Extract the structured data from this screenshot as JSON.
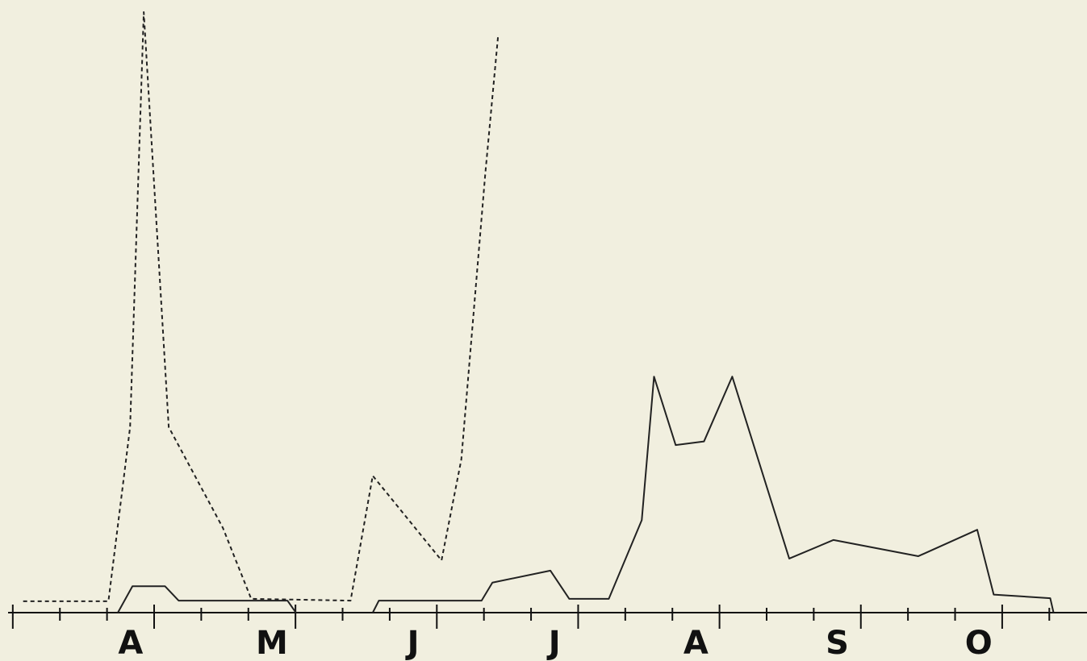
{
  "chart_data": {
    "type": "line",
    "xlim": [
      -0.1,
      22.8
    ],
    "ylim": [
      0,
      100
    ],
    "xticks": [
      0,
      1,
      2,
      3,
      4,
      5,
      6,
      7,
      8,
      9,
      10,
      11,
      12,
      13,
      14,
      15,
      16,
      17,
      18,
      19,
      20,
      21,
      22
    ],
    "xlabels": [
      {
        "value": 2.5,
        "label": "A"
      },
      {
        "value": 5.5,
        "label": "M"
      },
      {
        "value": 8.5,
        "label": "J"
      },
      {
        "value": 11.5,
        "label": "J"
      },
      {
        "value": 14.5,
        "label": "A"
      },
      {
        "value": 17.5,
        "label": "S"
      },
      {
        "value": 20.5,
        "label": "O"
      }
    ],
    "series": [
      {
        "color": "#222222",
        "dashed": true,
        "x": [
          0.22,
          2.03,
          2.49,
          2.78,
          3.31,
          4.46,
          5.06,
          7.17,
          7.64,
          9.1,
          9.52,
          10.03,
          10.3
        ],
        "values": [
          1.9,
          1.9,
          30.9,
          100,
          30.9,
          14.1,
          2.3,
          2.0,
          22.8,
          8.7,
          25.5,
          73.2,
          96
        ]
      },
      {
        "color": "#222222",
        "dashed": false,
        "x": [
          2.23,
          2.54,
          3.23,
          3.52,
          5.83,
          6.01,
          null,
          7.64,
          7.77,
          9.95,
          10.18,
          11.41,
          11.81,
          12.65,
          13.35,
          13.61,
          14.07,
          14.67,
          15.27,
          16.48,
          17.42,
          19.22,
          20.47,
          20.82,
          22.02,
          22.09
        ],
        "values": [
          0,
          4.4,
          4.4,
          2.0,
          2.0,
          0,
          null,
          0,
          2.0,
          2.0,
          5.0,
          7.0,
          2.3,
          2.3,
          15.4,
          39.3,
          27.9,
          28.5,
          39.3,
          9.0,
          12.1,
          9.4,
          13.8,
          3.0,
          2.4,
          0
        ]
      }
    ]
  }
}
